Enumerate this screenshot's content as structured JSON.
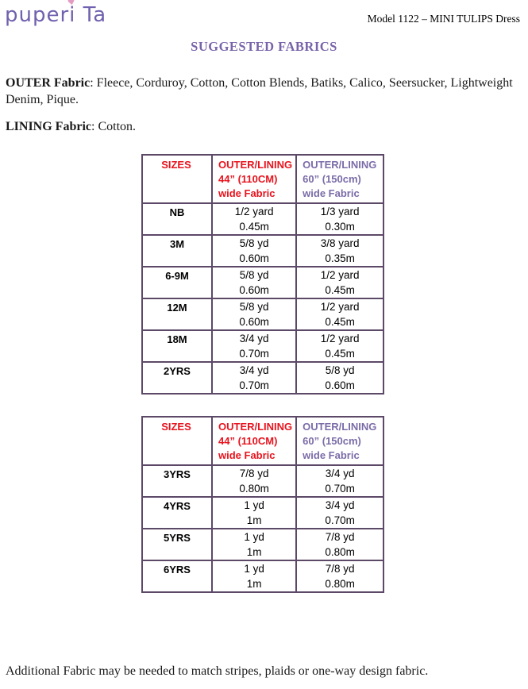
{
  "colors": {
    "accent_purple": "#7863a9",
    "header_purple": "#7b6ca8",
    "header_red": "#e8131d",
    "table_border": "#5c4968",
    "logo_purple": "#7161ae",
    "heart_pink": "#e59ac2",
    "text_black": "#1a1a1a"
  },
  "header": {
    "logo": {
      "part1": "puper",
      "dotted_letter": "i",
      "part2": " Ta",
      "heart_icon": "♥"
    },
    "model_label": "Model 1122 – MINI TULIPS Dress"
  },
  "title": "SUGGESTED FABRICS",
  "paragraphs": {
    "outer_label": "OUTER Fabric",
    "outer_text": ": Fleece, Corduroy, Cotton, Cotton Blends, Batiks, Calico, Seersucker, Lightweight Denim, Pique.",
    "lining_label": "LINING Fabric",
    "lining_text": ": Cotton."
  },
  "footnote": "Additional Fabric may be needed to match stripes, plaids or one-way design fabric.",
  "tables": [
    {
      "headers": [
        {
          "lines": [
            "SIZES"
          ]
        },
        {
          "lines": [
            "OUTER/LINING",
            "44” (110CM)",
            "wide Fabric"
          ]
        },
        {
          "lines": [
            "OUTER/LINING",
            "60” (150cm)",
            "wide Fabric"
          ]
        }
      ],
      "rows": [
        {
          "size": "NB",
          "fabric44": [
            "1/2 yard",
            "0.45m"
          ],
          "fabric60": [
            "1/3 yard",
            "0.30m"
          ]
        },
        {
          "size": "3M",
          "fabric44": [
            "5/8 yd",
            "0.60m"
          ],
          "fabric60": [
            "3/8 yard",
            "0.35m"
          ]
        },
        {
          "size": "6-9M",
          "fabric44": [
            "5/8 yd",
            "0.60m"
          ],
          "fabric60": [
            "1/2 yard",
            "0.45m"
          ]
        },
        {
          "size": "12M",
          "fabric44": [
            "5/8 yd",
            "0.60m"
          ],
          "fabric60": [
            "1/2 yard",
            "0.45m"
          ]
        },
        {
          "size": "18M",
          "fabric44": [
            "3/4 yd",
            "0.70m"
          ],
          "fabric60": [
            "1/2 yard",
            "0.45m"
          ]
        },
        {
          "size": "2YRS",
          "fabric44": [
            "3/4 yd",
            "0.70m"
          ],
          "fabric60": [
            "5/8 yd",
            "0.60m"
          ]
        }
      ]
    },
    {
      "headers": [
        {
          "lines": [
            "SIZES"
          ]
        },
        {
          "lines": [
            "OUTER/LINING",
            "44” (110CM)",
            "wide Fabric"
          ]
        },
        {
          "lines": [
            "OUTER/LINING",
            "60” (150cm)",
            "wide Fabric"
          ]
        }
      ],
      "rows": [
        {
          "size": "3YRS",
          "fabric44": [
            "7/8 yd",
            "0.80m"
          ],
          "fabric60": [
            "3/4 yd",
            "0.70m"
          ]
        },
        {
          "size": "4YRS",
          "fabric44": [
            "1 yd",
            "1m"
          ],
          "fabric60": [
            "3/4 yd",
            "0.70m"
          ]
        },
        {
          "size": "5YRS",
          "fabric44": [
            "1 yd",
            "1m"
          ],
          "fabric60": [
            "7/8 yd",
            "0.80m"
          ]
        },
        {
          "size": "6YRS",
          "fabric44": [
            "1 yd",
            "1m"
          ],
          "fabric60": [
            "7/8 yd",
            "0.80m"
          ]
        }
      ]
    }
  ]
}
